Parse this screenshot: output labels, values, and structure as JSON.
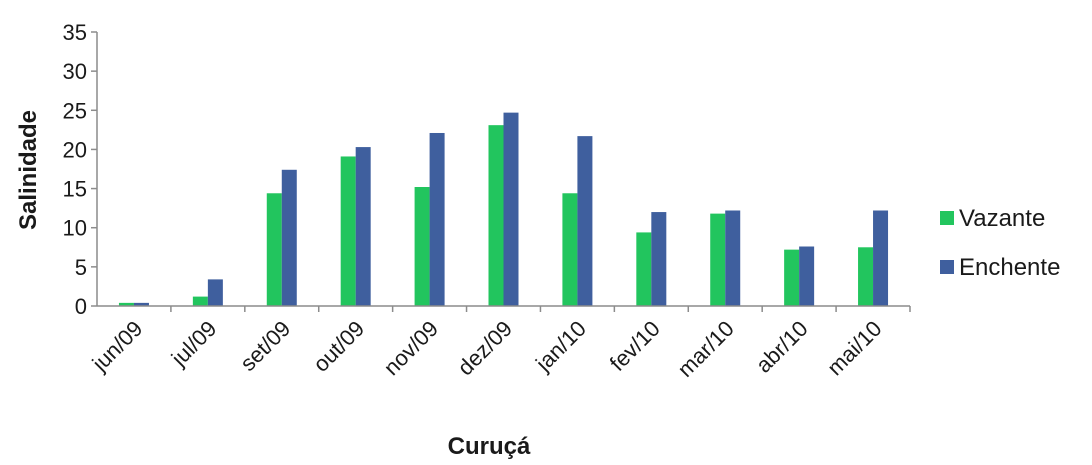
{
  "chart_data": {
    "type": "bar",
    "title": "",
    "xlabel": "Curuçá",
    "ylabel": "Salinidade",
    "ylim": [
      0,
      35
    ],
    "yticks": [
      0,
      5,
      10,
      15,
      20,
      25,
      30,
      35
    ],
    "grid": false,
    "legend_position": "right",
    "categories": [
      "jun/09",
      "jul/09",
      "set/09",
      "out/09",
      "nov/09",
      "dez/09",
      "jan/10",
      "fev/10",
      "mar/10",
      "abr/10",
      "mai/10"
    ],
    "series": [
      {
        "name": "Vazante",
        "color": "#22c55e",
        "values": [
          0.4,
          1.2,
          14.4,
          19.1,
          15.2,
          23.1,
          14.4,
          9.4,
          11.8,
          7.2,
          7.5
        ]
      },
      {
        "name": "Enchente",
        "color": "#3f5f9e",
        "values": [
          0.4,
          3.4,
          17.4,
          20.3,
          22.1,
          24.7,
          21.7,
          12.0,
          12.2,
          7.6,
          12.2
        ]
      }
    ]
  }
}
